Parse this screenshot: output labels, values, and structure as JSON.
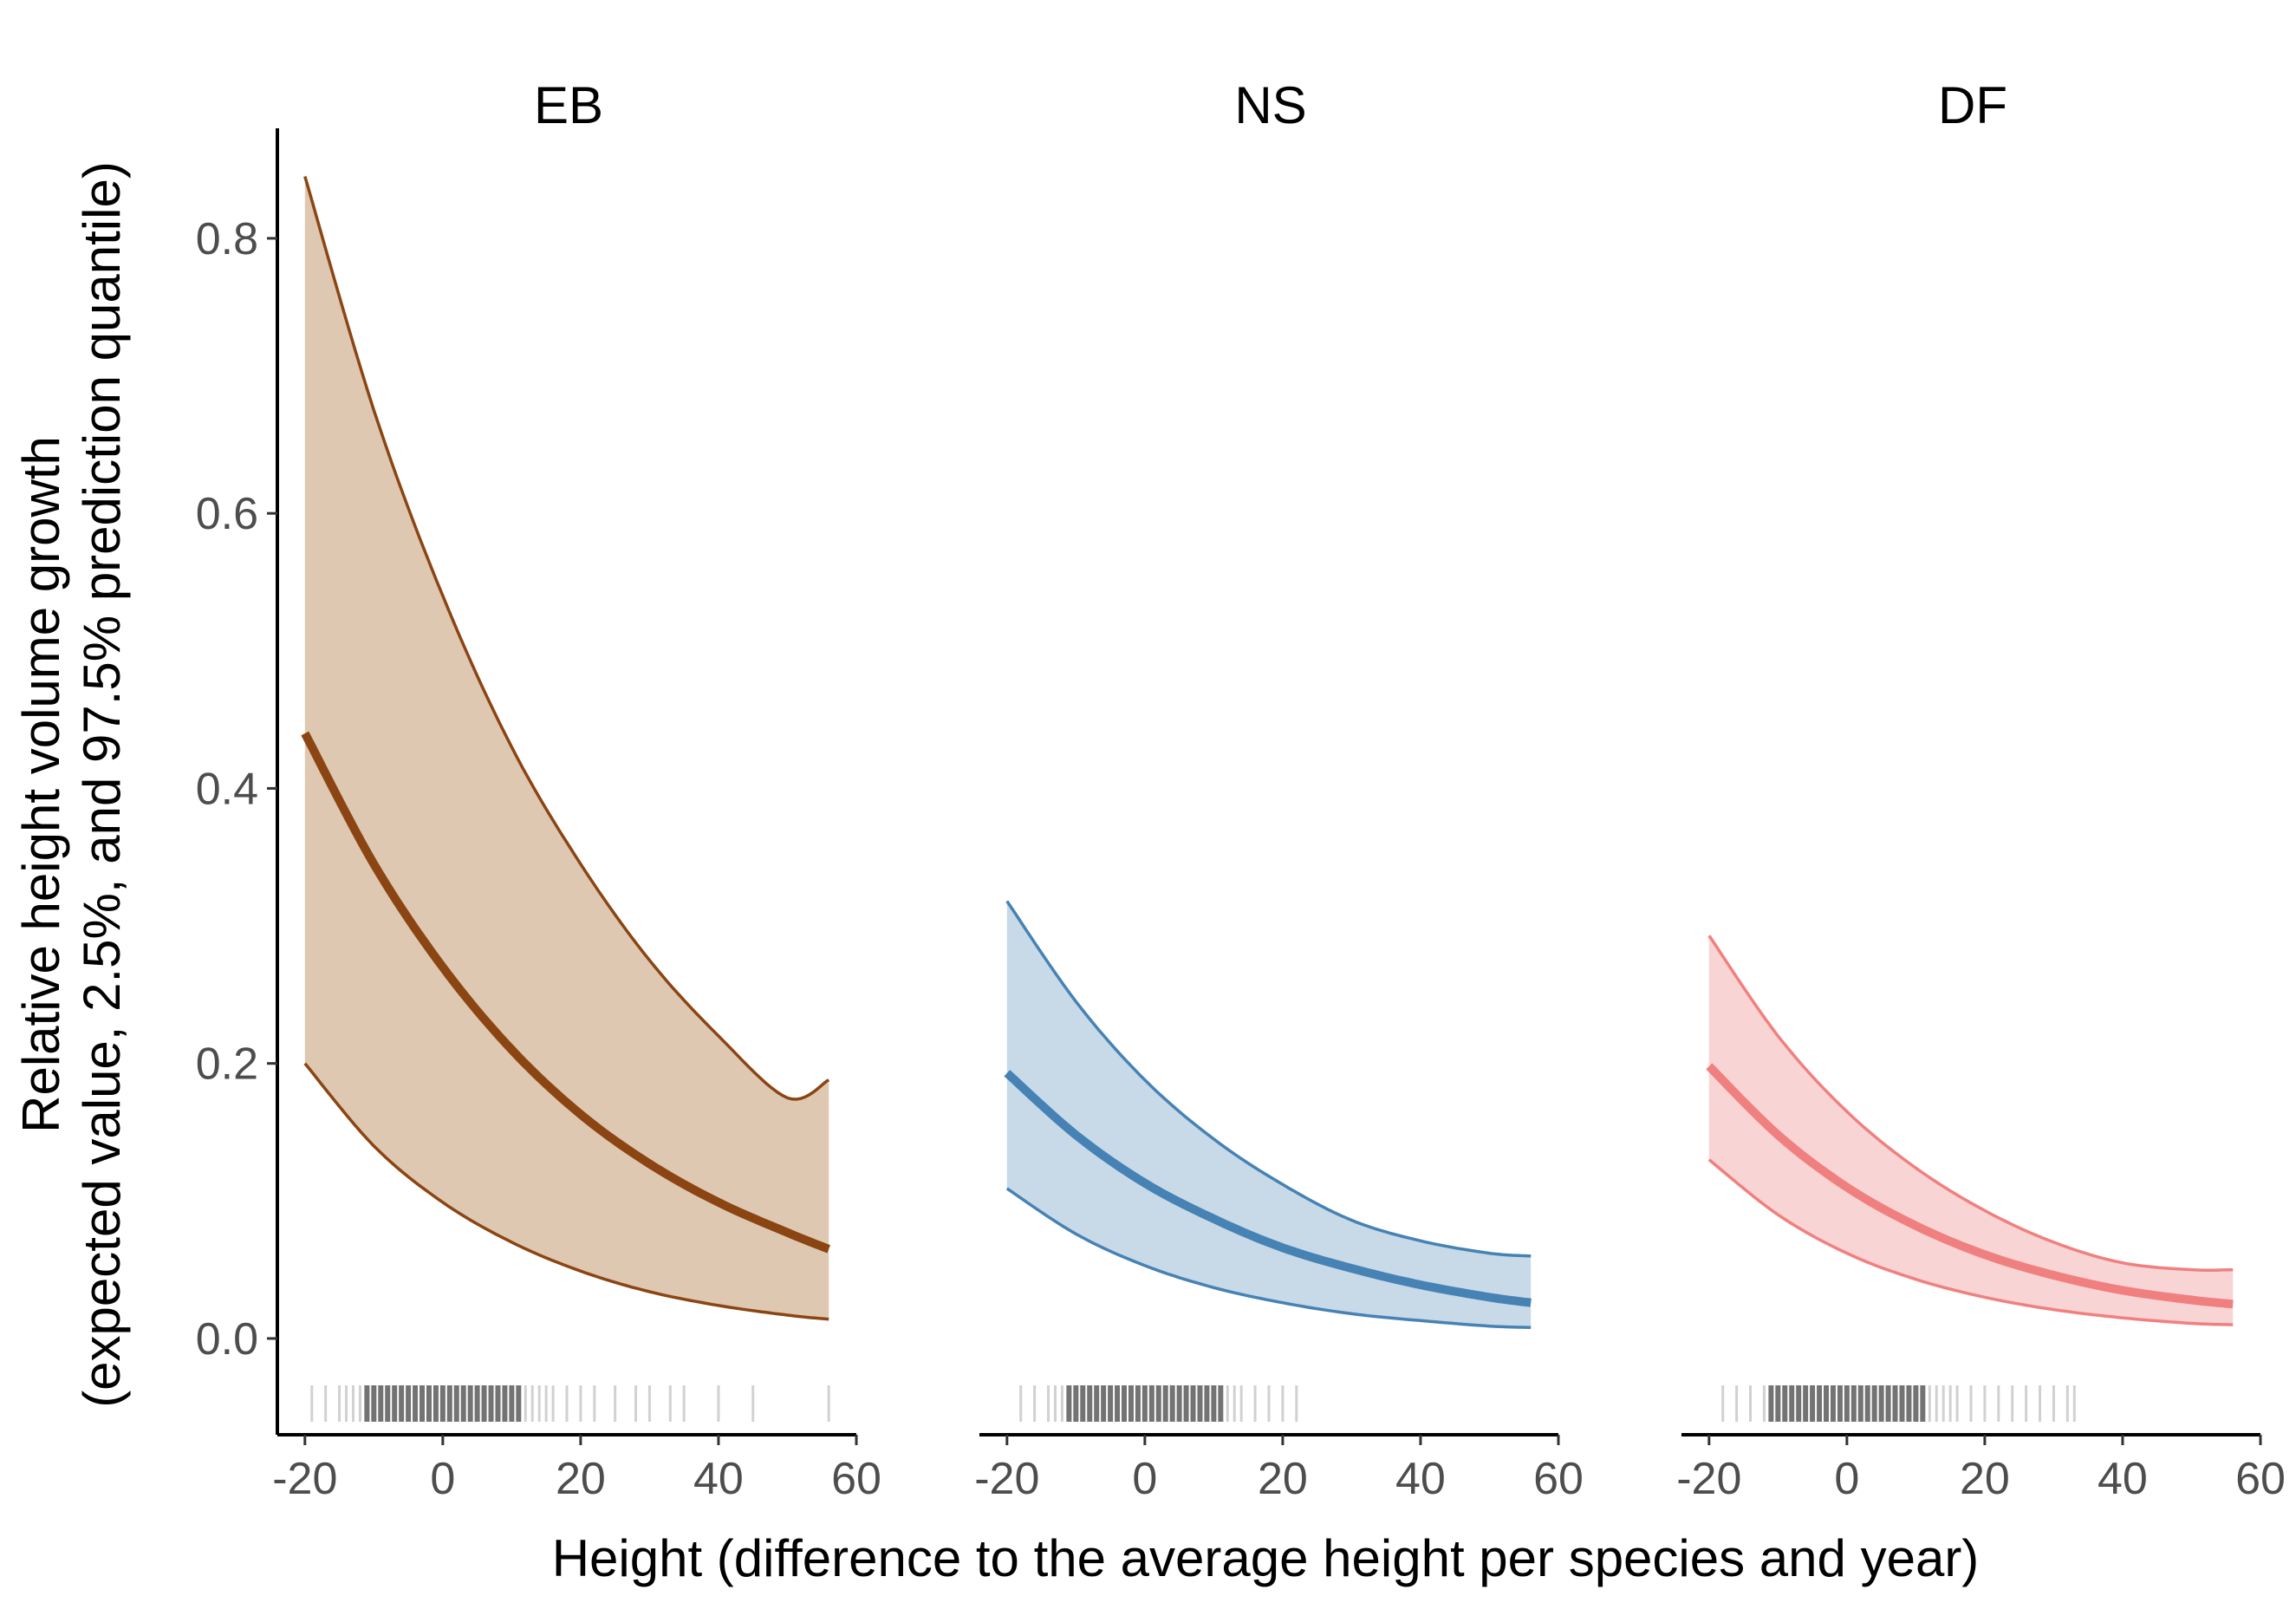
{
  "chart_data": {
    "type": "line",
    "facets": [
      "EB",
      "NS",
      "DF"
    ],
    "xlabel": "Height (difference to the average height per species and year)",
    "ylabel_line1": "Relative height volume growth",
    "ylabel_line2": "(expected value, 2.5%, and 97.5% prediction quantile)",
    "xlim": [
      -24,
      60
    ],
    "ylim": [
      -0.07,
      0.88
    ],
    "x_ticks": [
      -20,
      0,
      20,
      40,
      60
    ],
    "x_tick_labels": [
      "-20",
      "0",
      "20",
      "40",
      "60"
    ],
    "y_ticks": [
      0.0,
      0.2,
      0.4,
      0.6,
      0.8
    ],
    "y_tick_labels": [
      "0.0",
      "0.2",
      "0.4",
      "0.6",
      "0.8"
    ],
    "series": [
      {
        "name": "EB",
        "color": "#8b4513",
        "fill": "#dfc8b1",
        "x": [
          -20,
          -10,
          0,
          10,
          20,
          30,
          40,
          50,
          56
        ],
        "expected": [
          0.44,
          0.345,
          0.27,
          0.21,
          0.163,
          0.127,
          0.099,
          0.077,
          0.065
        ],
        "lower": [
          0.2,
          0.14,
          0.099,
          0.07,
          0.049,
          0.034,
          0.024,
          0.017,
          0.014
        ],
        "upper": [
          0.845,
          0.675,
          0.54,
          0.43,
          0.345,
          0.275,
          0.22,
          0.175,
          0.188
        ],
        "rug": [
          -19,
          -17,
          -15,
          -14,
          -13,
          -12,
          -11,
          -10,
          -9,
          -8,
          -7,
          -6,
          -5,
          -4,
          -3,
          -2,
          -1,
          0,
          1,
          2,
          3,
          4,
          5,
          6,
          7,
          8,
          9,
          10,
          11,
          12,
          13,
          14,
          15,
          16,
          18,
          20,
          22,
          25,
          28,
          30,
          33,
          35,
          40,
          45,
          56
        ]
      },
      {
        "name": "NS",
        "color": "#4682b4",
        "fill": "#c8d9e8",
        "x": [
          -20,
          -10,
          0,
          10,
          20,
          30,
          40,
          50,
          56
        ],
        "expected": [
          0.193,
          0.148,
          0.113,
          0.087,
          0.066,
          0.051,
          0.039,
          0.03,
          0.026
        ],
        "lower": [
          0.109,
          0.076,
          0.053,
          0.037,
          0.026,
          0.018,
          0.013,
          0.009,
          0.008
        ],
        "upper": [
          0.318,
          0.245,
          0.188,
          0.145,
          0.112,
          0.086,
          0.071,
          0.062,
          0.06
        ],
        "rug": [
          -18,
          -16,
          -14,
          -13,
          -12,
          -11,
          -10,
          -9,
          -8,
          -7,
          -6,
          -5,
          -4,
          -3,
          -2,
          -1,
          0,
          1,
          2,
          3,
          4,
          5,
          6,
          7,
          8,
          9,
          10,
          11,
          12,
          13,
          14,
          16,
          18,
          20,
          22
        ]
      },
      {
        "name": "DF",
        "color": "#f08080",
        "fill": "#f9d4d4",
        "x": [
          -20,
          -10,
          0,
          10,
          20,
          30,
          40,
          50,
          56
        ],
        "expected": [
          0.198,
          0.148,
          0.11,
          0.082,
          0.061,
          0.046,
          0.035,
          0.028,
          0.025
        ],
        "lower": [
          0.13,
          0.09,
          0.062,
          0.043,
          0.03,
          0.021,
          0.015,
          0.011,
          0.01
        ],
        "upper": [
          0.293,
          0.22,
          0.165,
          0.124,
          0.093,
          0.07,
          0.055,
          0.05,
          0.05
        ],
        "rug": [
          -18,
          -16,
          -14,
          -12,
          -11,
          -10,
          -9,
          -8,
          -7,
          -6,
          -5,
          -4,
          -3,
          -2,
          -1,
          0,
          1,
          2,
          3,
          4,
          5,
          6,
          7,
          8,
          9,
          10,
          11,
          12,
          13,
          14,
          15,
          16,
          18,
          20,
          22,
          24,
          26,
          28,
          30,
          32,
          33
        ]
      }
    ]
  }
}
